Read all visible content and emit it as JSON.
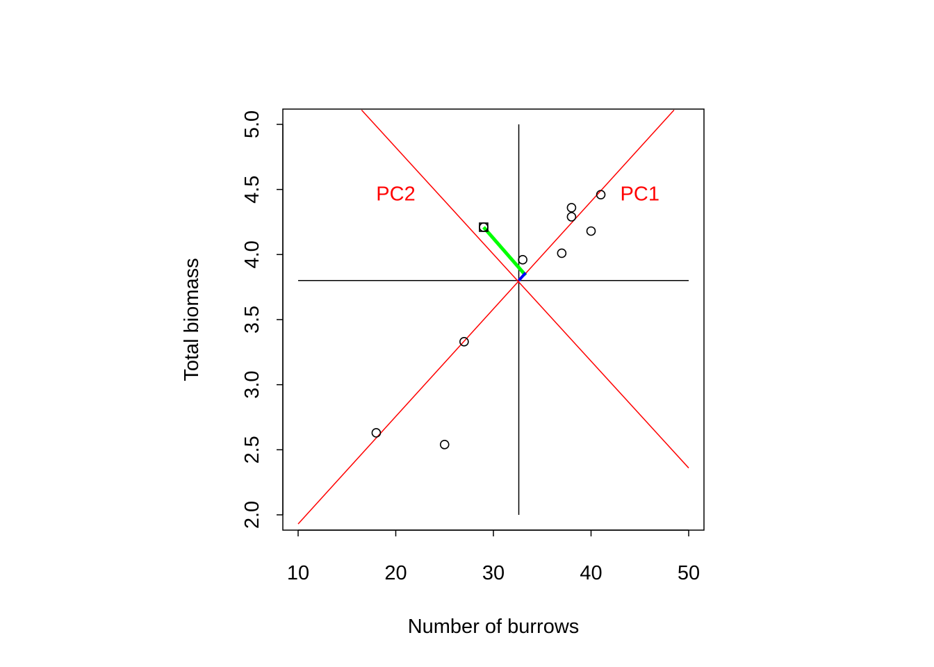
{
  "chart_data": {
    "type": "scatter",
    "title": "",
    "xlabel": "Number of burrows",
    "ylabel": "Total biomass",
    "xlim": [
      10,
      50
    ],
    "ylim": [
      2.0,
      5.0
    ],
    "x_ticks": [
      "10",
      "20",
      "30",
      "40",
      "50"
    ],
    "y_ticks": [
      "2.0",
      "2.5",
      "3.0",
      "3.5",
      "4.0",
      "4.5",
      "5.0"
    ],
    "grid": false,
    "points": [
      {
        "x": 18,
        "y": 2.63
      },
      {
        "x": 25,
        "y": 2.54
      },
      {
        "x": 27,
        "y": 3.33
      },
      {
        "x": 29,
        "y": 4.21
      },
      {
        "x": 33,
        "y": 3.96
      },
      {
        "x": 37,
        "y": 4.01
      },
      {
        "x": 38,
        "y": 4.36
      },
      {
        "x": 38,
        "y": 4.29
      },
      {
        "x": 40,
        "y": 4.18
      },
      {
        "x": 41,
        "y": 4.46
      }
    ],
    "highlighted_point": {
      "x": 29,
      "y": 4.21
    },
    "mean": {
      "x": 32.6,
      "y": 3.8
    },
    "pc_lines": [
      {
        "label": "PC1",
        "color": "#ff0000",
        "label_at": {
          "x": 45,
          "y": 4.47
        },
        "from": {
          "x": 10,
          "y": 1.93
        },
        "to": {
          "x": 48.5,
          "y": 5.11
        }
      },
      {
        "label": "PC2",
        "color": "#ff0000",
        "label_at": {
          "x": 20,
          "y": 4.47
        },
        "from": {
          "x": 16.5,
          "y": 5.11
        },
        "to": {
          "x": 50,
          "y": 2.36
        }
      }
    ],
    "mean_cross": {
      "vertical": {
        "x": 32.6,
        "y0": 2.0,
        "y1": 5.0
      },
      "horizontal": {
        "y": 3.8,
        "x0": 10,
        "x1": 50
      }
    },
    "projection_pc2": {
      "color": "#00ff00",
      "from": {
        "x": 29,
        "y": 4.21
      },
      "to": {
        "x": 33.3,
        "y": 3.84
      }
    },
    "projection_pc1": {
      "color": "#0000ff",
      "from": {
        "x": 32.6,
        "y": 3.8
      },
      "to": {
        "x": 33.3,
        "y": 3.86
      }
    }
  }
}
